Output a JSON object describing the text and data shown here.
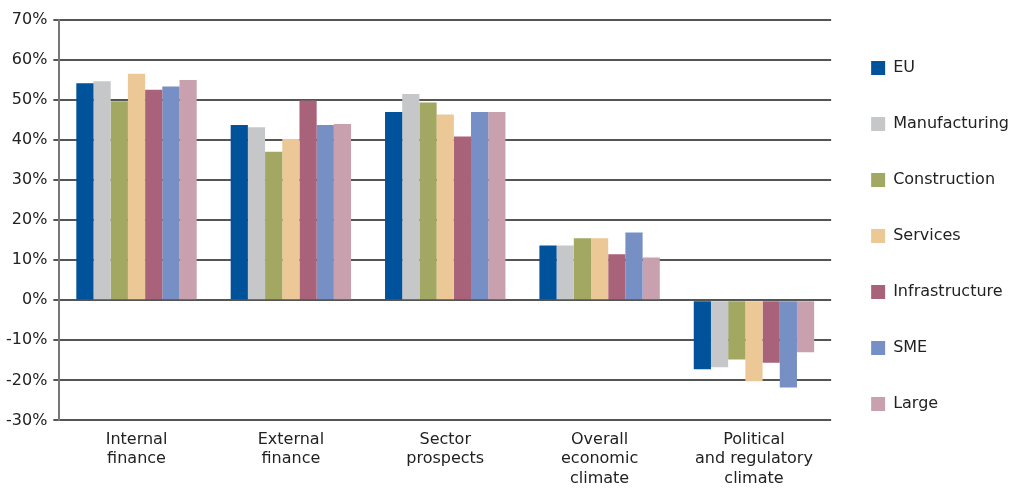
{
  "chart_data": {
    "type": "bar",
    "categories": [
      "Internal\nfinance",
      "External\nfinance",
      "Sector\nprospects",
      "Overall\neconomic\nclimate",
      "Political\nand regulatory\nclimate"
    ],
    "series": [
      {
        "name": "EU",
        "color": "#00529b",
        "values": [
          54.2,
          43.8,
          47,
          13.7,
          -17.2
        ]
      },
      {
        "name": "Manufacturing",
        "color": "#c6c7c8",
        "values": [
          54.7,
          43.2,
          51.5,
          13.7,
          -16.7
        ]
      },
      {
        "name": "Construction",
        "color": "#a2a862",
        "values": [
          49.7,
          37.1,
          49.4,
          15.5,
          -14.8
        ]
      },
      {
        "name": "Services",
        "color": "#ebc895",
        "values": [
          56.6,
          40.3,
          46.4,
          15.5,
          -20.2
        ]
      },
      {
        "name": "Infrastructure",
        "color": "#a8637a",
        "values": [
          52.6,
          49.9,
          40.9,
          11.5,
          -15.6
        ]
      },
      {
        "name": "SME",
        "color": "#768fc4",
        "values": [
          53.4,
          43.8,
          47,
          16.9,
          -21.8
        ]
      },
      {
        "name": "Large",
        "color": "#c9a0ad",
        "values": [
          55,
          44,
          47,
          10.7,
          -13
        ]
      }
    ],
    "ylim": [
      -30,
      70
    ],
    "yticks": [
      {
        "value": -30,
        "label": "-30%"
      },
      {
        "value": -20,
        "label": "-20%"
      },
      {
        "value": -10,
        "label": "-10%"
      },
      {
        "value": 0,
        "label": "0%"
      },
      {
        "value": 10,
        "label": "10%"
      },
      {
        "value": 20,
        "label": "20%"
      },
      {
        "value": 30,
        "label": "30%"
      },
      {
        "value": 40,
        "label": "40%"
      },
      {
        "value": 50,
        "label": "50%"
      },
      {
        "value": 60,
        "label": "60%"
      },
      {
        "value": 70,
        "label": "70%"
      }
    ],
    "grid": "y",
    "legend": "right"
  }
}
